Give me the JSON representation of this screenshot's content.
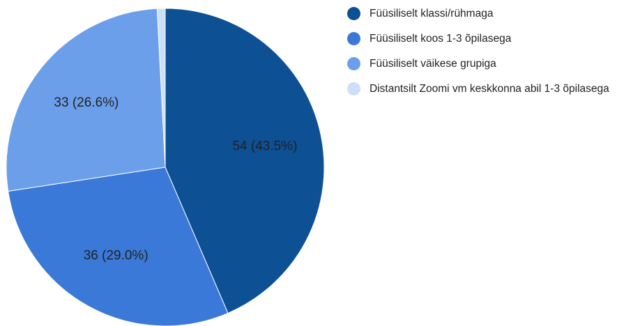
{
  "chart_data": {
    "type": "pie",
    "categories": [
      "Füüsiliselt klassi/rühmaga",
      "Füüsiliselt koos 1-3 õpilasega",
      "Füüsiliselt väikese grupiga",
      "Distantsilt Zoomi vm keskkonna abil 1-3 õpilasega"
    ],
    "values": [
      54,
      36,
      33,
      1
    ],
    "value_labels": [
      "54 (43.5%)",
      "36 (29.0%)",
      "33 (26.6%)",
      null
    ],
    "colors": [
      "#0d5094",
      "#3b79d9",
      "#6c9fea",
      "#cbe0f6"
    ],
    "legend": "right"
  }
}
